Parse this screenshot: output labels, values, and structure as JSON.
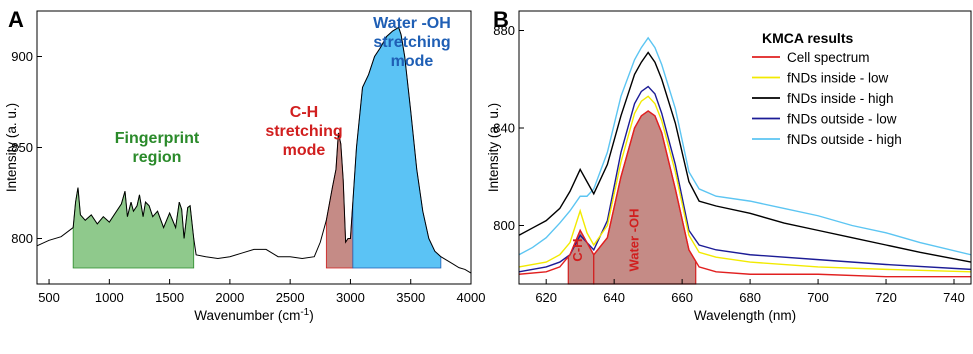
{
  "chart_data": [
    {
      "panel": "A",
      "type": "area",
      "xlabel": "Wavenumber",
      "xlabel_unit_base": "cm",
      "xlabel_unit_sup": "-1",
      "ylabel": "Intensity (a. u.)",
      "xlim": [
        400,
        4000
      ],
      "ylim": [
        775,
        925
      ],
      "xticks": [
        500,
        1000,
        1500,
        2000,
        2500,
        3000,
        3500,
        4000
      ],
      "yticks": [
        800,
        850,
        900
      ],
      "grid": false,
      "line_color": "#000000",
      "spectrum": {
        "x": [
          400,
          500,
          600,
          700,
          720,
          740,
          760,
          800,
          850,
          900,
          950,
          1000,
          1050,
          1100,
          1130,
          1150,
          1180,
          1200,
          1230,
          1250,
          1280,
          1300,
          1330,
          1360,
          1400,
          1450,
          1500,
          1550,
          1580,
          1600,
          1620,
          1650,
          1670,
          1700,
          1720,
          1800,
          1900,
          2000,
          2100,
          2200,
          2300,
          2400,
          2500,
          2600,
          2700,
          2750,
          2800,
          2850,
          2880,
          2900,
          2920,
          2940,
          2960,
          2980,
          3000,
          3020,
          3050,
          3100,
          3150,
          3200,
          3250,
          3300,
          3350,
          3400,
          3420,
          3450,
          3500,
          3550,
          3600,
          3650,
          3700,
          3750,
          3800,
          3850,
          3900,
          3950,
          4000
        ],
        "y": [
          796,
          799,
          801,
          806,
          820,
          828,
          813,
          810,
          813,
          808,
          812,
          809,
          814,
          819,
          826,
          812,
          820,
          815,
          818,
          824,
          812,
          820,
          818,
          812,
          815,
          806,
          814,
          806,
          820,
          816,
          800,
          817,
          818,
          800,
          791,
          790,
          789,
          790,
          792,
          794,
          794,
          790,
          790,
          789,
          790,
          798,
          810,
          828,
          838,
          858,
          852,
          832,
          798,
          800,
          800,
          820,
          850,
          883,
          890,
          900,
          905,
          911,
          914,
          916,
          912,
          900,
          870,
          838,
          815,
          800,
          793,
          790,
          788,
          786,
          784,
          783,
          781
        ]
      },
      "regions": [
        {
          "label_lines": [
            "Fingerprint",
            "region"
          ],
          "x_start": 700,
          "x_end": 1700,
          "color": "#8fc98c",
          "text_color": "#2a8a2a"
        },
        {
          "label_lines": [
            "C-H",
            "stretching",
            "mode"
          ],
          "x_start": 2800,
          "x_end": 3020,
          "color": "#c58b86",
          "text_color": "#d11f1f"
        },
        {
          "label_lines": [
            "Water -OH",
            "stretching",
            "mode"
          ],
          "x_start": 3020,
          "x_end": 3750,
          "color": "#5bc3f5",
          "text_color": "#1f5fb5"
        }
      ]
    },
    {
      "panel": "B",
      "type": "line",
      "xlabel": "Wavelength (nm)",
      "ylabel": "Intensity (a. u.)",
      "xlim": [
        612,
        745
      ],
      "ylim": [
        776,
        888
      ],
      "xticks": [
        620,
        640,
        660,
        680,
        700,
        720,
        740
      ],
      "yticks": [
        800,
        840,
        880
      ],
      "grid": false,
      "legend_title": "KMCA results",
      "legend_position": "top-right",
      "series": [
        {
          "name": "Cell spectrum",
          "color": "#e12020",
          "x": [
            612,
            620,
            624,
            627,
            630,
            632,
            634,
            638,
            642,
            646,
            648,
            650,
            652,
            654,
            658,
            662,
            665,
            670,
            680,
            700,
            720,
            745
          ],
          "y": [
            780,
            781,
            783,
            788,
            798,
            793,
            788,
            795,
            820,
            840,
            845,
            847,
            845,
            838,
            815,
            790,
            783,
            781,
            780,
            780,
            779,
            779
          ]
        },
        {
          "name": "fNDs inside - low",
          "color": "#f2ea00",
          "x": [
            612,
            620,
            624,
            627,
            630,
            632,
            634,
            638,
            642,
            646,
            648,
            650,
            652,
            654,
            658,
            662,
            665,
            670,
            680,
            700,
            720,
            745
          ],
          "y": [
            783,
            785,
            788,
            793,
            806,
            797,
            792,
            800,
            826,
            846,
            851,
            853,
            850,
            843,
            822,
            796,
            789,
            787,
            785,
            783,
            782,
            781
          ]
        },
        {
          "name": "fNDs inside - high",
          "color": "#000000",
          "x": [
            612,
            616,
            620,
            624,
            627,
            630,
            632,
            634,
            638,
            642,
            646,
            648,
            650,
            652,
            654,
            658,
            662,
            665,
            670,
            680,
            690,
            700,
            710,
            720,
            730,
            745
          ],
          "y": [
            796,
            799,
            802,
            807,
            814,
            823,
            818,
            813,
            825,
            845,
            862,
            867,
            871,
            867,
            860,
            842,
            818,
            810,
            808,
            805,
            801,
            798,
            795,
            792,
            789,
            785
          ]
        },
        {
          "name": "fNDs outside - low",
          "color": "#1c1c96",
          "x": [
            612,
            620,
            624,
            627,
            630,
            632,
            634,
            638,
            642,
            646,
            648,
            650,
            652,
            654,
            658,
            662,
            665,
            670,
            680,
            700,
            720,
            745
          ],
          "y": [
            781,
            783,
            785,
            788,
            796,
            793,
            790,
            802,
            830,
            850,
            855,
            857,
            854,
            846,
            825,
            798,
            792,
            790,
            788,
            786,
            784,
            782
          ]
        },
        {
          "name": "fNDs outside - high",
          "color": "#5cc5f2",
          "x": [
            612,
            616,
            620,
            624,
            627,
            630,
            632,
            634,
            638,
            642,
            646,
            648,
            650,
            652,
            654,
            658,
            662,
            665,
            670,
            680,
            690,
            700,
            710,
            720,
            730,
            745
          ],
          "y": [
            788,
            791,
            795,
            801,
            806,
            812,
            812,
            815,
            830,
            853,
            868,
            873,
            877,
            873,
            866,
            848,
            822,
            815,
            812,
            810,
            807,
            804,
            800,
            797,
            793,
            788
          ]
        }
      ],
      "regions": [
        {
          "label": "C-H",
          "x_start": 626.5,
          "x_end": 634,
          "color": "#c58b86",
          "text_color": "#d11f1f"
        },
        {
          "label": "Water -OH",
          "x_start": 634,
          "x_end": 664,
          "color": "#c58b86",
          "text_color": "#d11f1f"
        }
      ]
    }
  ]
}
